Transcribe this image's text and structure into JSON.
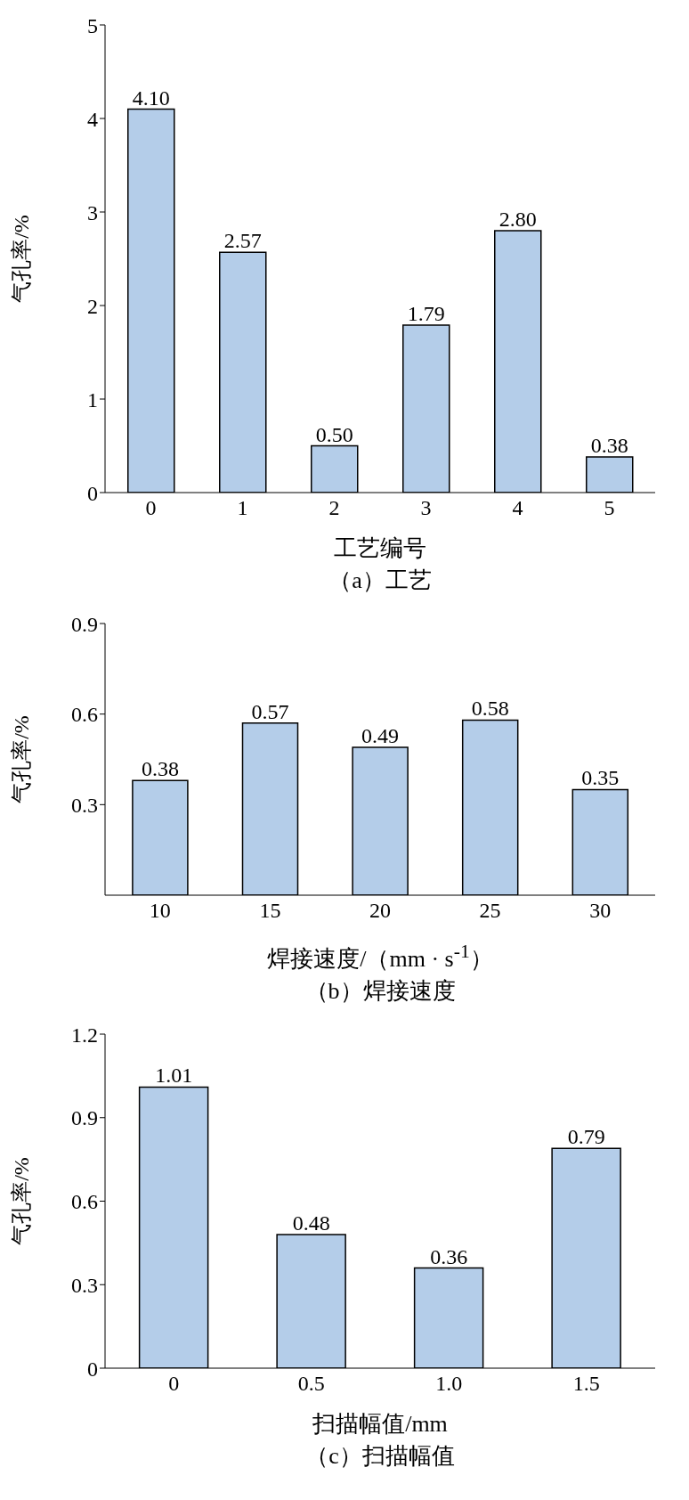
{
  "chart_data": [
    {
      "type": "bar",
      "title": "（a）工艺",
      "xlabel": "工艺编号",
      "ylabel": "气孔率/%",
      "categories": [
        "0",
        "1",
        "2",
        "3",
        "4",
        "5"
      ],
      "values": [
        4.1,
        2.57,
        0.5,
        1.79,
        2.8,
        0.38
      ],
      "value_labels": [
        "4.10",
        "2.57",
        "0.50",
        "1.79",
        "2.80",
        "0.38"
      ],
      "color": "#b4cde9",
      "ylim": [
        0,
        5
      ],
      "yticks": [
        0,
        1,
        2,
        3,
        4,
        5
      ]
    },
    {
      "type": "bar",
      "title": "（b）焊接速度",
      "xlabel": "焊接速度/（mm · s$^{-1}$）",
      "ylabel": "气孔率/%",
      "categories": [
        "10",
        "15",
        "20",
        "25",
        "30"
      ],
      "values": [
        0.38,
        0.57,
        0.49,
        0.58,
        0.35
      ],
      "value_labels": [
        "0.38",
        "0.57",
        "0.49",
        "0.58",
        "0.35"
      ],
      "color": "#b4cde9",
      "ylim": [
        0,
        0.9
      ],
      "yticks": [
        0.3,
        0.6,
        0.9
      ]
    },
    {
      "type": "bar",
      "title": "（c）扫描幅值",
      "xlabel": "扫描幅值/mm",
      "ylabel": "气孔率/%",
      "categories": [
        "0",
        "0.5",
        "1.0",
        "1.5"
      ],
      "values": [
        1.01,
        0.48,
        0.36,
        0.79
      ],
      "value_labels": [
        "1.01",
        "0.48",
        "0.36",
        "0.79"
      ],
      "color": "#b4cde9",
      "ylim": [
        0,
        1.2
      ],
      "yticks": [
        0,
        0.3,
        0.6,
        0.9,
        1.2
      ]
    }
  ]
}
